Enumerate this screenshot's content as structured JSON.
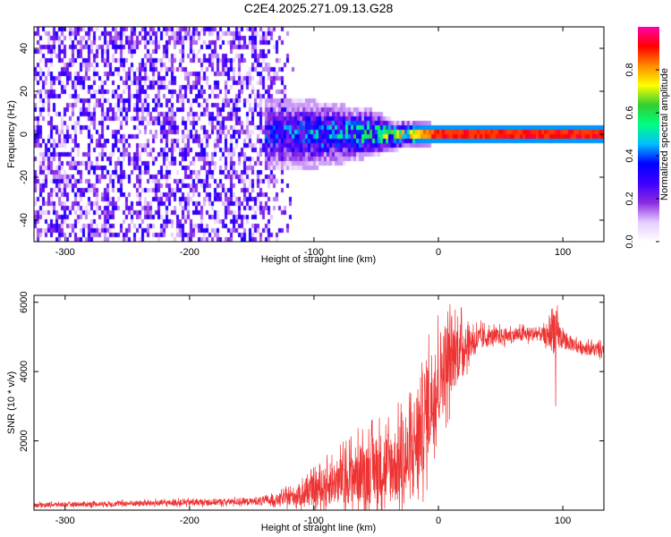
{
  "chart_data": [
    {
      "type": "heatmap",
      "title": "C2E4.2025.271.09.13.G28",
      "xlabel": "Height of straight line (km)",
      "ylabel": "Frequency (Hz)",
      "xlim": [
        -325,
        133
      ],
      "ylim": [
        -50,
        50
      ],
      "x_ticks": [
        -300,
        -200,
        -100,
        0,
        100
      ],
      "y_ticks": [
        -40,
        -20,
        0,
        20,
        40
      ],
      "colorbar": {
        "label": "Normalized spectral amplitude",
        "range": [
          0,
          1
        ],
        "ticks": [
          0.0,
          0.2,
          0.4,
          0.6,
          0.8
        ],
        "tick_labels": [
          "0.0",
          "0.2",
          "0.4",
          "0.6",
          "0.8"
        ],
        "colors": [
          "#ffffff",
          "#e6ccff",
          "#8a2be2",
          "#3d00ff",
          "#0000ff",
          "#00bfff",
          "#00ff7f",
          "#32cd32",
          "#ffff00",
          "#ff8c00",
          "#ff0000",
          "#ff00aa"
        ]
      },
      "features": {
        "noise_region_x": [
          -325,
          -130
        ],
        "noise_amplitude": 0.3,
        "signal_line_freq_hz": 0,
        "signal_start_x": -140,
        "spread_envelope": [
          {
            "x": -140,
            "half_width": 8,
            "amp": 0.35
          },
          {
            "x": -100,
            "half_width": 8,
            "amp": 0.42
          },
          {
            "x": -60,
            "half_width": 6,
            "amp": 0.5
          },
          {
            "x": -30,
            "half_width": 3,
            "amp": 0.7
          },
          {
            "x": 0,
            "half_width": 2.5,
            "amp": 0.95
          },
          {
            "x": 133,
            "half_width": 2.5,
            "amp": 0.95
          }
        ]
      }
    },
    {
      "type": "line",
      "title": "",
      "xlabel": "Height of straight line (km)",
      "ylabel": "SNR (10 * v/v)",
      "xlim": [
        -325,
        133
      ],
      "ylim": [
        0,
        6200
      ],
      "x_ticks": [
        -300,
        -200,
        -100,
        0,
        100
      ],
      "y_ticks": [
        2000,
        4000,
        6000
      ],
      "series": [
        {
          "name": "SNR",
          "color": "#ee3333",
          "envelope": {
            "x": [
              -325,
              -150,
              -130,
              -110,
              -90,
              -70,
              -50,
              -35,
              -25,
              -15,
              -5,
              5,
              15,
              25,
              40,
              60,
              80,
              88,
              92,
              100,
              115,
              133
            ],
            "y": [
              150,
              250,
              300,
              450,
              700,
              1000,
              1200,
              1300,
              1400,
              2300,
              3300,
              4200,
              4600,
              4850,
              5000,
              5050,
              5100,
              5000,
              5300,
              4900,
              4700,
              4600
            ]
          },
          "noise_ratio": [
            0.8,
            0.8,
            1.0,
            1.5,
            1.6,
            1.6,
            1.7,
            1.7,
            1.8,
            1.3,
            0.9,
            0.6,
            0.4,
            0.2,
            0.1,
            0.08,
            0.08,
            0.1,
            0.3,
            0.1,
            0.08,
            0.08
          ],
          "dips": [
            {
              "x": 94,
              "y": 2800
            }
          ]
        }
      ]
    }
  ]
}
